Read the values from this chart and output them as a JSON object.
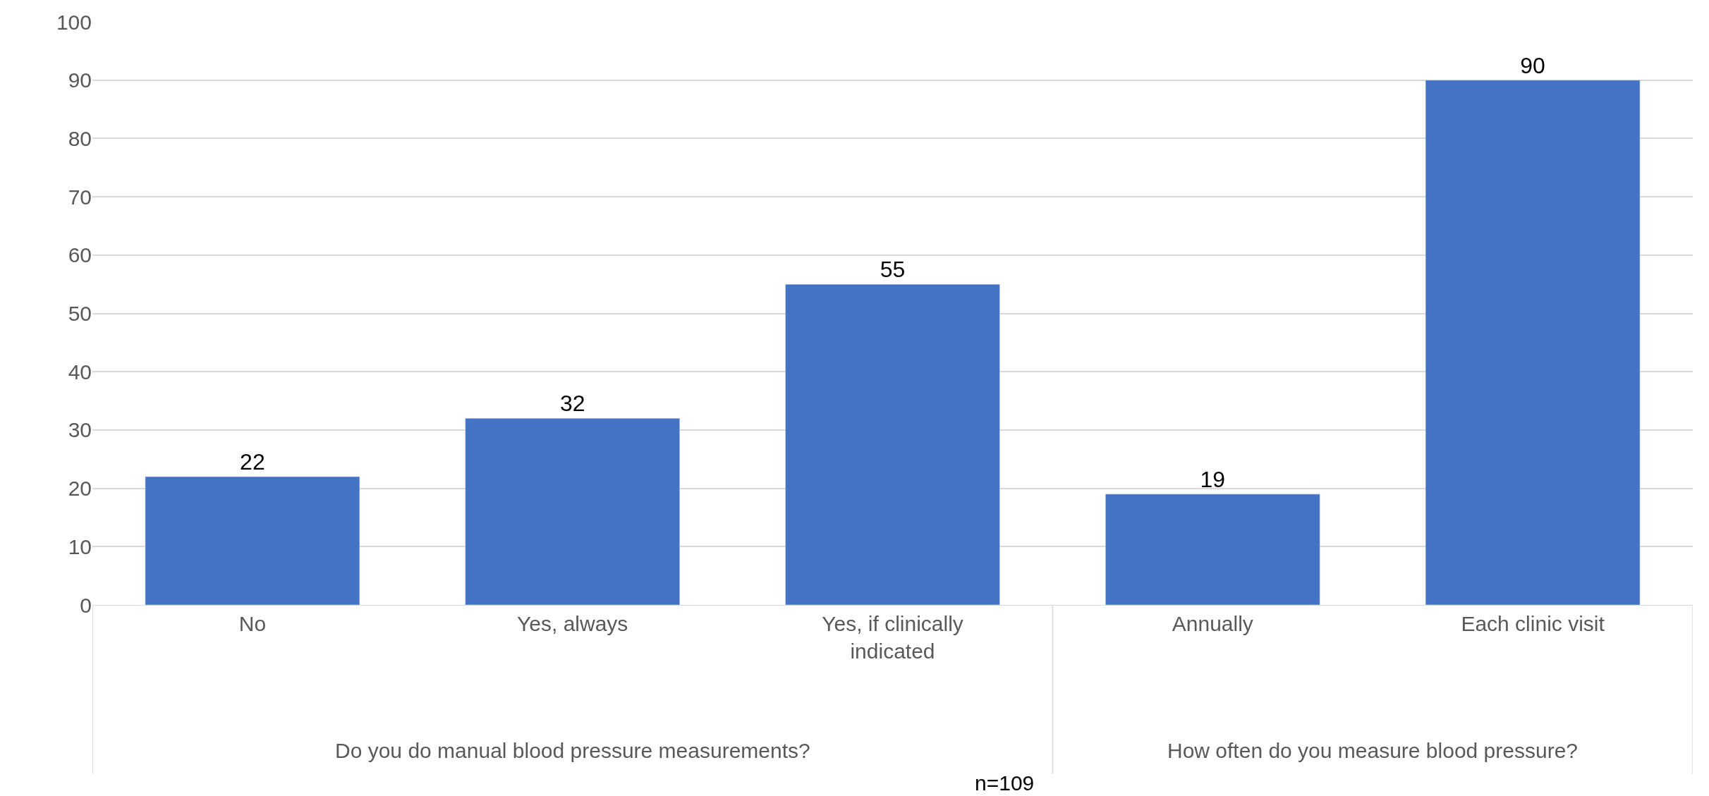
{
  "chart_data": {
    "type": "bar",
    "categories": [
      "No",
      "Yes, always",
      "Yes, if clinically indicated",
      "Annually",
      "Each clinic visit"
    ],
    "values": [
      22,
      32,
      55,
      19,
      90
    ],
    "color": "#4472c4",
    "ylim": [
      0,
      100
    ],
    "yticks": [
      0,
      10,
      20,
      30,
      40,
      50,
      60,
      70,
      80,
      90,
      100
    ],
    "grid": "y",
    "data_labels": true,
    "legend": false,
    "annotations": [
      "Do you do manual blood pressure measurements?",
      "How often do you measure blood pressure?",
      "n=109"
    ]
  }
}
